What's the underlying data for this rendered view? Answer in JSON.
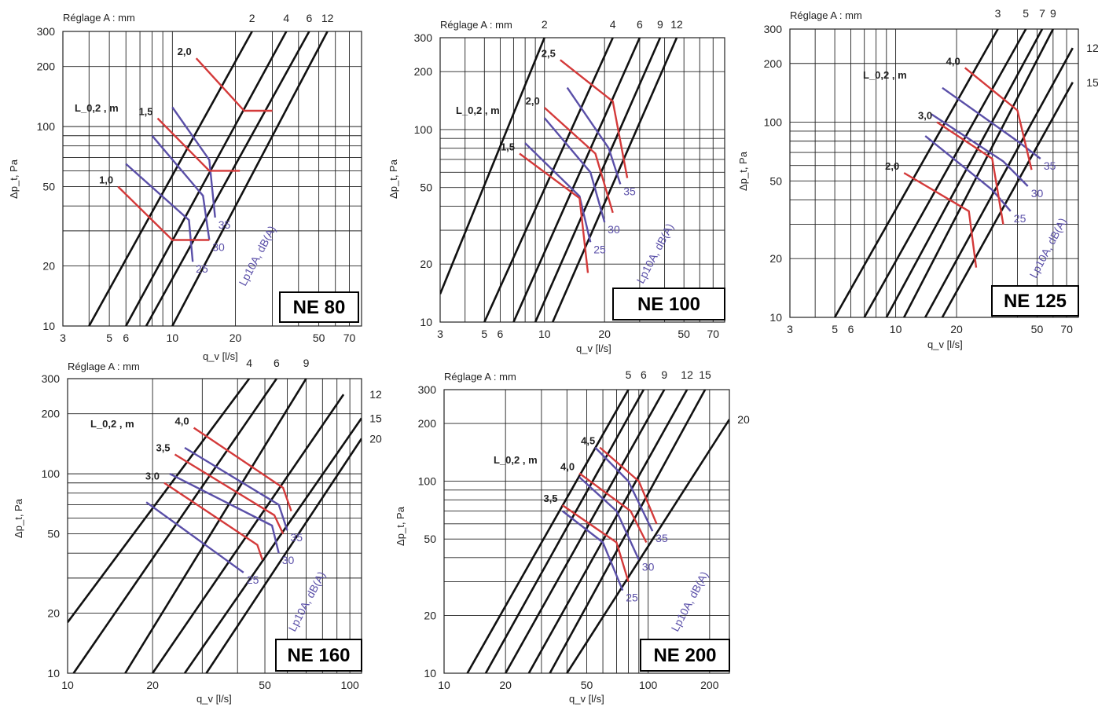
{
  "colors": {
    "pressure_drop": "#d43a3a",
    "sound": "#5a4fa8",
    "setting": "#111111",
    "grid": "#222222"
  },
  "chart_data": [
    {
      "type": "line",
      "name": "NE 80",
      "title": "Réglage A : mm",
      "xlabel": "q_v [l/s]",
      "ylabel": "Δp_t, Pa",
      "length_label": "L_0,2 , m",
      "sound_axis_label": "Lp10A, dB(A)",
      "x_scale": "log",
      "y_scale": "log",
      "xlim": [
        3,
        80
      ],
      "ylim": [
        10,
        300
      ],
      "x_ticks": [
        3,
        5,
        6,
        10,
        20,
        50,
        70
      ],
      "y_ticks": [
        10,
        20,
        50,
        100,
        200,
        300
      ],
      "settings": [
        {
          "A": "2",
          "points": [
            [
              4,
              10
            ],
            [
              24,
              300
            ]
          ]
        },
        {
          "A": "4",
          "points": [
            [
              6,
              10
            ],
            [
              35,
              300
            ]
          ]
        },
        {
          "A": "6",
          "points": [
            [
              7.5,
              10
            ],
            [
              45,
              300
            ]
          ]
        },
        {
          "A": "12",
          "points": [
            [
              10,
              10
            ],
            [
              55,
              300
            ]
          ]
        }
      ],
      "setting_labels": [
        "2",
        "4",
        "6",
        "12"
      ],
      "length_curves": [
        {
          "label": "2,0",
          "points": [
            [
              13,
              220
            ],
            [
              22,
              120
            ],
            [
              30,
              120
            ]
          ]
        },
        {
          "label": "1,5",
          "points": [
            [
              8.5,
              110
            ],
            [
              15,
              60
            ],
            [
              21,
              60
            ]
          ]
        },
        {
          "label": "1,0",
          "points": [
            [
              5.5,
              50
            ],
            [
              10,
              27
            ],
            [
              15,
              27
            ]
          ]
        }
      ],
      "sound_curves": [
        {
          "label": "35",
          "points": [
            [
              10,
              125
            ],
            [
              15,
              68
            ],
            [
              16,
              35
            ]
          ]
        },
        {
          "label": "30",
          "points": [
            [
              8,
              90
            ],
            [
              14,
              45
            ],
            [
              15,
              27
            ]
          ]
        },
        {
          "label": "25",
          "points": [
            [
              6,
              65
            ],
            [
              12,
              34
            ],
            [
              12.5,
              21
            ]
          ]
        }
      ]
    },
    {
      "type": "line",
      "name": "NE 100",
      "title": "Réglage A : mm",
      "xlabel": "q_v [l/s]",
      "ylabel": "Δp_t, Pa",
      "length_label": "L_0,2 , m",
      "sound_axis_label": "Lp10A, dB(A)",
      "x_scale": "log",
      "y_scale": "log",
      "xlim": [
        3,
        80
      ],
      "ylim": [
        10,
        300
      ],
      "x_ticks": [
        3,
        5,
        6,
        10,
        20,
        50,
        70
      ],
      "y_ticks": [
        10,
        20,
        50,
        100,
        200,
        300
      ],
      "settings": [
        {
          "A": "2",
          "points": [
            [
              3,
              14
            ],
            [
              10,
              300
            ]
          ]
        },
        {
          "A": "4",
          "points": [
            [
              5,
              10
            ],
            [
              22,
              300
            ]
          ]
        },
        {
          "A": "6",
          "points": [
            [
              7,
              10
            ],
            [
              30,
              300
            ]
          ]
        },
        {
          "A": "9",
          "points": [
            [
              9,
              10
            ],
            [
              38,
              300
            ]
          ]
        },
        {
          "A": "12",
          "points": [
            [
              11,
              10
            ],
            [
              46,
              300
            ]
          ]
        }
      ],
      "setting_labels": [
        "2",
        "4",
        "6",
        "9",
        "12"
      ],
      "length_curves": [
        {
          "label": "2,5",
          "points": [
            [
              12,
              230
            ],
            [
              22,
              140
            ],
            [
              26,
              56
            ]
          ]
        },
        {
          "label": "2,0",
          "points": [
            [
              10,
              130
            ],
            [
              18,
              75
            ],
            [
              22,
              37
            ]
          ]
        },
        {
          "label": "1,5",
          "points": [
            [
              7.5,
              75
            ],
            [
              15,
              44
            ],
            [
              16.5,
              18
            ]
          ]
        }
      ],
      "sound_curves": [
        {
          "label": "35",
          "points": [
            [
              13,
              165
            ],
            [
              21,
              80
            ],
            [
              24,
              52
            ]
          ]
        },
        {
          "label": "30",
          "points": [
            [
              10,
              115
            ],
            [
              17,
              60
            ],
            [
              20,
              33
            ]
          ]
        },
        {
          "label": "25",
          "points": [
            [
              8,
              85
            ],
            [
              15,
              45
            ],
            [
              17,
              26
            ]
          ]
        }
      ]
    },
    {
      "type": "line",
      "name": "NE 125",
      "title": "Réglage A : mm",
      "xlabel": "q_v [l/s]",
      "ylabel": "Δp_t, Pa",
      "length_label": "L_0,2 , m",
      "sound_axis_label": "Lp10A, dB(A)",
      "x_scale": "log",
      "y_scale": "log",
      "xlim": [
        3,
        80
      ],
      "ylim": [
        10,
        300
      ],
      "x_ticks": [
        3,
        5,
        6,
        10,
        20,
        50,
        70
      ],
      "y_ticks": [
        10,
        20,
        50,
        100,
        200,
        300
      ],
      "settings": [
        {
          "A": "3",
          "points": [
            [
              5,
              10
            ],
            [
              32,
              300
            ]
          ]
        },
        {
          "A": "5",
          "points": [
            [
              7,
              10
            ],
            [
              44,
              300
            ]
          ]
        },
        {
          "A": "7",
          "points": [
            [
              9,
              10
            ],
            [
              53,
              300
            ]
          ]
        },
        {
          "A": "9",
          "points": [
            [
              11,
              10
            ],
            [
              60,
              300
            ]
          ]
        },
        {
          "A": "12",
          "points": [
            [
              14,
              10
            ],
            [
              75,
              240
            ]
          ]
        },
        {
          "A": "15",
          "points": [
            [
              17,
              10
            ],
            [
              75,
              160
            ]
          ]
        }
      ],
      "setting_labels": [
        "3",
        "5",
        "7",
        "9",
        "12",
        "15"
      ],
      "length_curves": [
        {
          "label": "4,0",
          "points": [
            [
              22,
              190
            ],
            [
              40,
              115
            ],
            [
              47,
              57
            ]
          ]
        },
        {
          "label": "3,0",
          "points": [
            [
              16,
              100
            ],
            [
              30,
              65
            ],
            [
              34,
              30
            ]
          ]
        },
        {
          "label": "2,0",
          "points": [
            [
              11,
              55
            ],
            [
              23,
              35
            ],
            [
              25,
              18
            ]
          ]
        }
      ],
      "sound_curves": [
        {
          "label": "35",
          "points": [
            [
              17,
              150
            ],
            [
              40,
              80
            ],
            [
              52,
              65
            ]
          ]
        },
        {
          "label": "30",
          "points": [
            [
              15,
              110
            ],
            [
              34,
              63
            ],
            [
              45,
              47
            ]
          ]
        },
        {
          "label": "25",
          "points": [
            [
              14,
              85
            ],
            [
              30,
              45
            ],
            [
              37,
              35
            ]
          ]
        }
      ]
    },
    {
      "type": "line",
      "name": "NE 160",
      "title": "Réglage A : mm",
      "xlabel": "q_v [l/s]",
      "ylabel": "Δp_t, Pa",
      "length_label": "L_0,2 , m",
      "sound_axis_label": "Lp10A, dB(A)",
      "x_scale": "log",
      "y_scale": "log",
      "xlim": [
        10,
        110
      ],
      "ylim": [
        10,
        300
      ],
      "x_ticks": [
        10,
        20,
        50,
        100
      ],
      "y_ticks": [
        10,
        20,
        50,
        100,
        200,
        300
      ],
      "settings": [
        {
          "A": "4",
          "points": [
            [
              10,
              18
            ],
            [
              44,
              300
            ]
          ]
        },
        {
          "A": "6",
          "points": [
            [
              10.5,
              10
            ],
            [
              55,
              300
            ]
          ]
        },
        {
          "A": "9",
          "points": [
            [
              16,
              10
            ],
            [
              70,
              300
            ]
          ]
        },
        {
          "A": "12",
          "points": [
            [
              20,
              10
            ],
            [
              95,
              250
            ]
          ]
        },
        {
          "A": "15",
          "points": [
            [
              26,
              10
            ],
            [
              110,
              190
            ]
          ]
        },
        {
          "A": "20",
          "points": [
            [
              31,
              10
            ],
            [
              110,
              150
            ]
          ]
        }
      ],
      "setting_labels": [
        "4",
        "6",
        "9",
        "12",
        "15",
        "20"
      ],
      "length_curves": [
        {
          "label": "4,0",
          "points": [
            [
              28,
              170
            ],
            [
              58,
              85
            ],
            [
              62,
              65
            ]
          ]
        },
        {
          "label": "3,5",
          "points": [
            [
              24,
              125
            ],
            [
              54,
              62
            ],
            [
              58,
              50
            ]
          ]
        },
        {
          "label": "3,0",
          "points": [
            [
              22,
              90
            ],
            [
              47,
              44
            ],
            [
              49,
              37
            ]
          ]
        }
      ],
      "sound_curves": [
        {
          "label": "35",
          "points": [
            [
              26,
              135
            ],
            [
              56,
              70
            ],
            [
              60,
              52
            ]
          ]
        },
        {
          "label": "30",
          "points": [
            [
              23,
              100
            ],
            [
              53,
              55
            ],
            [
              56,
              40
            ]
          ]
        },
        {
          "label": "25",
          "points": [
            [
              19,
              72
            ],
            [
              42,
              32
            ]
          ]
        }
      ]
    },
    {
      "type": "line",
      "name": "NE 200",
      "title": "Réglage A : mm",
      "xlabel": "q_v [l/s]",
      "ylabel": "Δp_t, Pa",
      "length_label": "L_0,2 , m",
      "sound_axis_label": "Lp10A, dB(A)",
      "x_scale": "log",
      "y_scale": "log",
      "xlim": [
        10,
        250
      ],
      "ylim": [
        10,
        300
      ],
      "x_ticks": [
        10,
        20,
        50,
        100,
        200
      ],
      "y_ticks": [
        10,
        20,
        50,
        100,
        200,
        300
      ],
      "settings": [
        {
          "A": "5",
          "points": [
            [
              13,
              10
            ],
            [
              80,
              300
            ]
          ]
        },
        {
          "A": "6",
          "points": [
            [
              16,
              10
            ],
            [
              95,
              300
            ]
          ]
        },
        {
          "A": "9",
          "points": [
            [
              20,
              10
            ],
            [
              120,
              300
            ]
          ]
        },
        {
          "A": "12",
          "points": [
            [
              26,
              10
            ],
            [
              155,
              300
            ]
          ]
        },
        {
          "A": "15",
          "points": [
            [
              33,
              10
            ],
            [
              190,
              300
            ]
          ]
        },
        {
          "A": "20",
          "points": [
            [
              40,
              10
            ],
            [
              250,
              210
            ]
          ]
        }
      ],
      "setting_labels": [
        "5",
        "6",
        "9",
        "12",
        "15",
        "20"
      ],
      "length_curves": [
        {
          "label": "4,5",
          "points": [
            [
              58,
              150
            ],
            [
              90,
              100
            ],
            [
              110,
              60
            ]
          ]
        },
        {
          "label": "4,0",
          "points": [
            [
              46,
              110
            ],
            [
              82,
              70
            ],
            [
              98,
              48
            ]
          ]
        },
        {
          "label": "3,5",
          "points": [
            [
              38,
              75
            ],
            [
              70,
              48
            ],
            [
              80,
              30
            ]
          ]
        }
      ],
      "sound_curves": [
        {
          "label": "35",
          "points": [
            [
              55,
              150
            ],
            [
              80,
              100
            ],
            [
              105,
              55
            ]
          ]
        },
        {
          "label": "30",
          "points": [
            [
              46,
              105
            ],
            [
              70,
              70
            ],
            [
              90,
              39
            ]
          ]
        },
        {
          "label": "25",
          "points": [
            [
              38,
              70
            ],
            [
              60,
              48
            ],
            [
              75,
              27
            ]
          ]
        }
      ]
    }
  ],
  "panels": [
    {
      "name": "NE 80",
      "title": "Réglage A : mm",
      "length_label": "L_0,2 , m",
      "xlabel": "q_v [l/s]",
      "ylabel": "Δp_t, Pa",
      "sound_axis_label": "Lp10A, dB(A)"
    },
    {
      "name": "NE 100",
      "title": "Réglage A : mm",
      "length_label": "L_0,2 , m",
      "xlabel": "q_v [l/s]",
      "ylabel": "Δp_t, Pa",
      "sound_axis_label": "Lp10A, dB(A)"
    },
    {
      "name": "NE 125",
      "title": "Réglage A : mm",
      "length_label": "L_0,2 , m",
      "xlabel": "q_v [l/s]",
      "ylabel": "Δp_t, Pa",
      "sound_axis_label": "Lp10A, dB(A)"
    },
    {
      "name": "NE 160",
      "title": "Réglage A : mm",
      "length_label": "L_0,2 , m",
      "xlabel": "q_v [l/s]",
      "ylabel": "Δp_t, Pa",
      "sound_axis_label": "Lp10A, dB(A)"
    },
    {
      "name": "NE 200",
      "title": "Réglage A : mm",
      "length_label": "L_0,2 , m",
      "xlabel": "q_v [l/s]",
      "ylabel": "Δp_t, Pa",
      "sound_axis_label": "Lp10A, dB(A)"
    }
  ]
}
